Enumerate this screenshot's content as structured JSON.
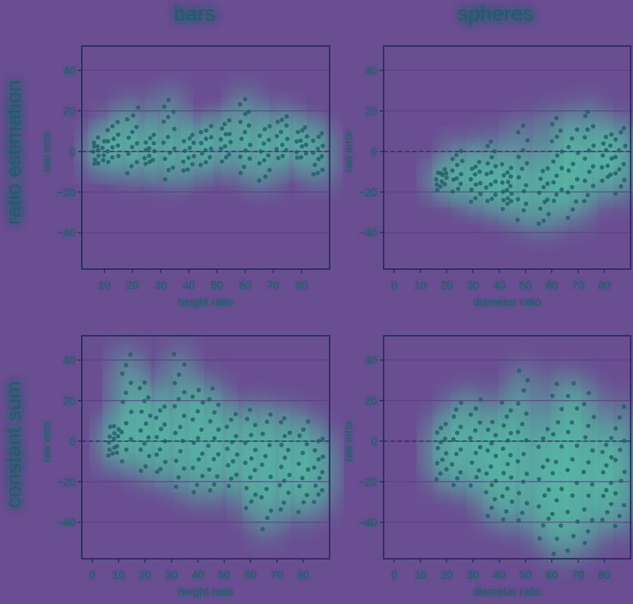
{
  "columns": [
    "bars",
    "spheres"
  ],
  "rows": [
    "ratio estimation",
    "constant sum"
  ],
  "colors": {
    "background": "#6a4e92",
    "glow": "#4fd6a8",
    "point": "#235c66",
    "axis": "#1e2a52",
    "text": "#1f5e68",
    "grid": "#5b3f82"
  },
  "chart_data": [
    {
      "type": "scatter",
      "panel": "ratio estimation / bars",
      "xlabel": "height ratio",
      "ylabel": "raw error",
      "xlim": [
        2,
        90
      ],
      "ylim": [
        -58,
        52
      ],
      "xticks": [
        10,
        20,
        30,
        40,
        50,
        60,
        70,
        80
      ],
      "yticks": [
        -40,
        -20,
        0,
        20,
        40
      ],
      "reference_line_y": 0,
      "groups": [
        {
          "x": 8,
          "spread": [
            -6,
            6
          ],
          "n": 14
        },
        {
          "x": 13,
          "spread": [
            -5,
            14
          ],
          "n": 12
        },
        {
          "x": 20,
          "spread": [
            -10,
            21
          ],
          "n": 12
        },
        {
          "x": 26,
          "spread": [
            -7,
            8
          ],
          "n": 12
        },
        {
          "x": 33,
          "spread": [
            -13,
            26
          ],
          "n": 14
        },
        {
          "x": 40,
          "spread": [
            -10,
            9
          ],
          "n": 12
        },
        {
          "x": 46,
          "spread": [
            -6,
            12
          ],
          "n": 12
        },
        {
          "x": 53,
          "spread": [
            -5,
            15
          ],
          "n": 12
        },
        {
          "x": 60,
          "spread": [
            -10,
            26
          ],
          "n": 14
        },
        {
          "x": 67,
          "spread": [
            -14,
            13
          ],
          "n": 12
        },
        {
          "x": 73,
          "spread": [
            -4,
            18
          ],
          "n": 12
        },
        {
          "x": 80,
          "spread": [
            -4,
            12
          ],
          "n": 12
        },
        {
          "x": 86,
          "spread": [
            -12,
            9
          ],
          "n": 12
        }
      ]
    },
    {
      "type": "scatter",
      "panel": "ratio estimation / spheres",
      "xlabel": "diameter ratio",
      "ylabel": "raw error",
      "xlim": [
        -4,
        90
      ],
      "ylim": [
        -58,
        52
      ],
      "xticks": [
        0,
        10,
        20,
        30,
        40,
        50,
        60,
        70,
        80
      ],
      "yticks": [
        -40,
        -20,
        0,
        20,
        40
      ],
      "reference_line_y": 0,
      "groups": [
        {
          "x": 18,
          "spread": [
            -18,
            -9
          ],
          "n": 12
        },
        {
          "x": 24,
          "spread": [
            -20,
            1
          ],
          "n": 12
        },
        {
          "x": 31,
          "spread": [
            -24,
            -5
          ],
          "n": 12
        },
        {
          "x": 37,
          "spread": [
            -25,
            4
          ],
          "n": 14
        },
        {
          "x": 43,
          "spread": [
            -28,
            -7
          ],
          "n": 16
        },
        {
          "x": 49,
          "spread": [
            -33,
            12
          ],
          "n": 14
        },
        {
          "x": 57,
          "spread": [
            -36,
            -8
          ],
          "n": 12
        },
        {
          "x": 62,
          "spread": [
            -25,
            17
          ],
          "n": 14
        },
        {
          "x": 68,
          "spread": [
            -32,
            10
          ],
          "n": 12
        },
        {
          "x": 74,
          "spread": [
            -24,
            20
          ],
          "n": 14
        },
        {
          "x": 81,
          "spread": [
            -15,
            9
          ],
          "n": 12
        },
        {
          "x": 86,
          "spread": [
            -20,
            12
          ],
          "n": 12
        }
      ]
    },
    {
      "type": "scatter",
      "panel": "constant sum / bars",
      "xlabel": "height ratio",
      "ylabel": "raw error",
      "xlim": [
        -4,
        90
      ],
      "ylim": [
        -58,
        52
      ],
      "xticks": [
        0,
        10,
        20,
        30,
        40,
        50,
        60,
        70,
        80
      ],
      "yticks": [
        -40,
        -20,
        0,
        20,
        40
      ],
      "reference_line_y": 0,
      "groups": [
        {
          "x": 8,
          "spread": [
            -8,
            8
          ],
          "n": 14
        },
        {
          "x": 13,
          "spread": [
            -9,
            42
          ],
          "n": 12
        },
        {
          "x": 20,
          "spread": [
            -15,
            29
          ],
          "n": 14
        },
        {
          "x": 26,
          "spread": [
            -16,
            18
          ],
          "n": 12
        },
        {
          "x": 33,
          "spread": [
            -22,
            42
          ],
          "n": 16
        },
        {
          "x": 40,
          "spread": [
            -25,
            26
          ],
          "n": 14
        },
        {
          "x": 46,
          "spread": [
            -25,
            25
          ],
          "n": 14
        },
        {
          "x": 53,
          "spread": [
            -22,
            13
          ],
          "n": 12
        },
        {
          "x": 60,
          "spread": [
            -34,
            15
          ],
          "n": 14
        },
        {
          "x": 66,
          "spread": [
            -44,
            14
          ],
          "n": 12
        },
        {
          "x": 73,
          "spread": [
            -33,
            12
          ],
          "n": 14
        },
        {
          "x": 80,
          "spread": [
            -35,
            10
          ],
          "n": 12
        },
        {
          "x": 86,
          "spread": [
            -30,
            2
          ],
          "n": 12
        }
      ]
    },
    {
      "type": "scatter",
      "panel": "constant sum / spheres",
      "xlabel": "diameter ratio",
      "ylabel": "raw error",
      "xlim": [
        -4,
        90
      ],
      "ylim": [
        -58,
        52
      ],
      "xticks": [
        0,
        10,
        20,
        30,
        40,
        50,
        60,
        70,
        80
      ],
      "yticks": [
        -40,
        -20,
        0,
        20,
        40
      ],
      "reference_line_y": 0,
      "groups": [
        {
          "x": 18,
          "spread": [
            -18,
            8
          ],
          "n": 12
        },
        {
          "x": 24,
          "spread": [
            -22,
            19
          ],
          "n": 12
        },
        {
          "x": 31,
          "spread": [
            -22,
            20
          ],
          "n": 12
        },
        {
          "x": 37,
          "spread": [
            -36,
            9
          ],
          "n": 14
        },
        {
          "x": 43,
          "spread": [
            -38,
            20
          ],
          "n": 16
        },
        {
          "x": 49,
          "spread": [
            -40,
            34
          ],
          "n": 16
        },
        {
          "x": 57,
          "spread": [
            -47,
            6
          ],
          "n": 12
        },
        {
          "x": 62,
          "spread": [
            -55,
            29
          ],
          "n": 14
        },
        {
          "x": 68,
          "spread": [
            -53,
            29
          ],
          "n": 14
        },
        {
          "x": 74,
          "spread": [
            -50,
            24
          ],
          "n": 14
        },
        {
          "x": 81,
          "spread": [
            -38,
            2
          ],
          "n": 12
        },
        {
          "x": 86,
          "spread": [
            -42,
            17
          ],
          "n": 12
        }
      ]
    }
  ]
}
